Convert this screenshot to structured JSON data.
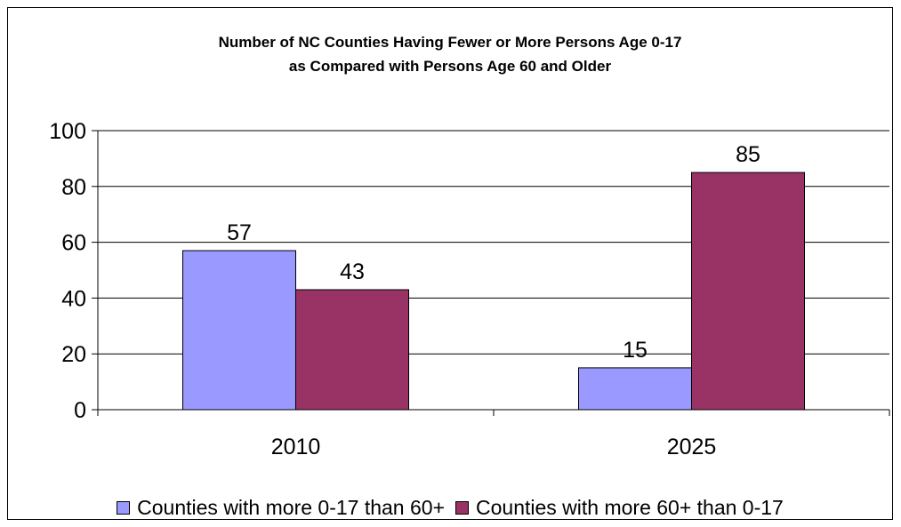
{
  "chart_data": {
    "type": "bar",
    "title": [
      "Number of NC Counties Having Fewer or More Persons Age 0-17",
      "as Compared with Persons Age 60 and Older"
    ],
    "categories": [
      "2010",
      "2025"
    ],
    "series": [
      {
        "name": "Counties with more 0-17 than 60+",
        "values": [
          57,
          15
        ],
        "color": "#9999ff"
      },
      {
        "name": "Counties with more 60+ than 0-17",
        "values": [
          43,
          85
        ],
        "color": "#993366"
      }
    ],
    "ylim": [
      0,
      100
    ],
    "yticks": [
      0,
      20,
      40,
      60,
      80,
      100
    ],
    "grid": true,
    "legend_position": "bottom",
    "data_labels": true
  }
}
